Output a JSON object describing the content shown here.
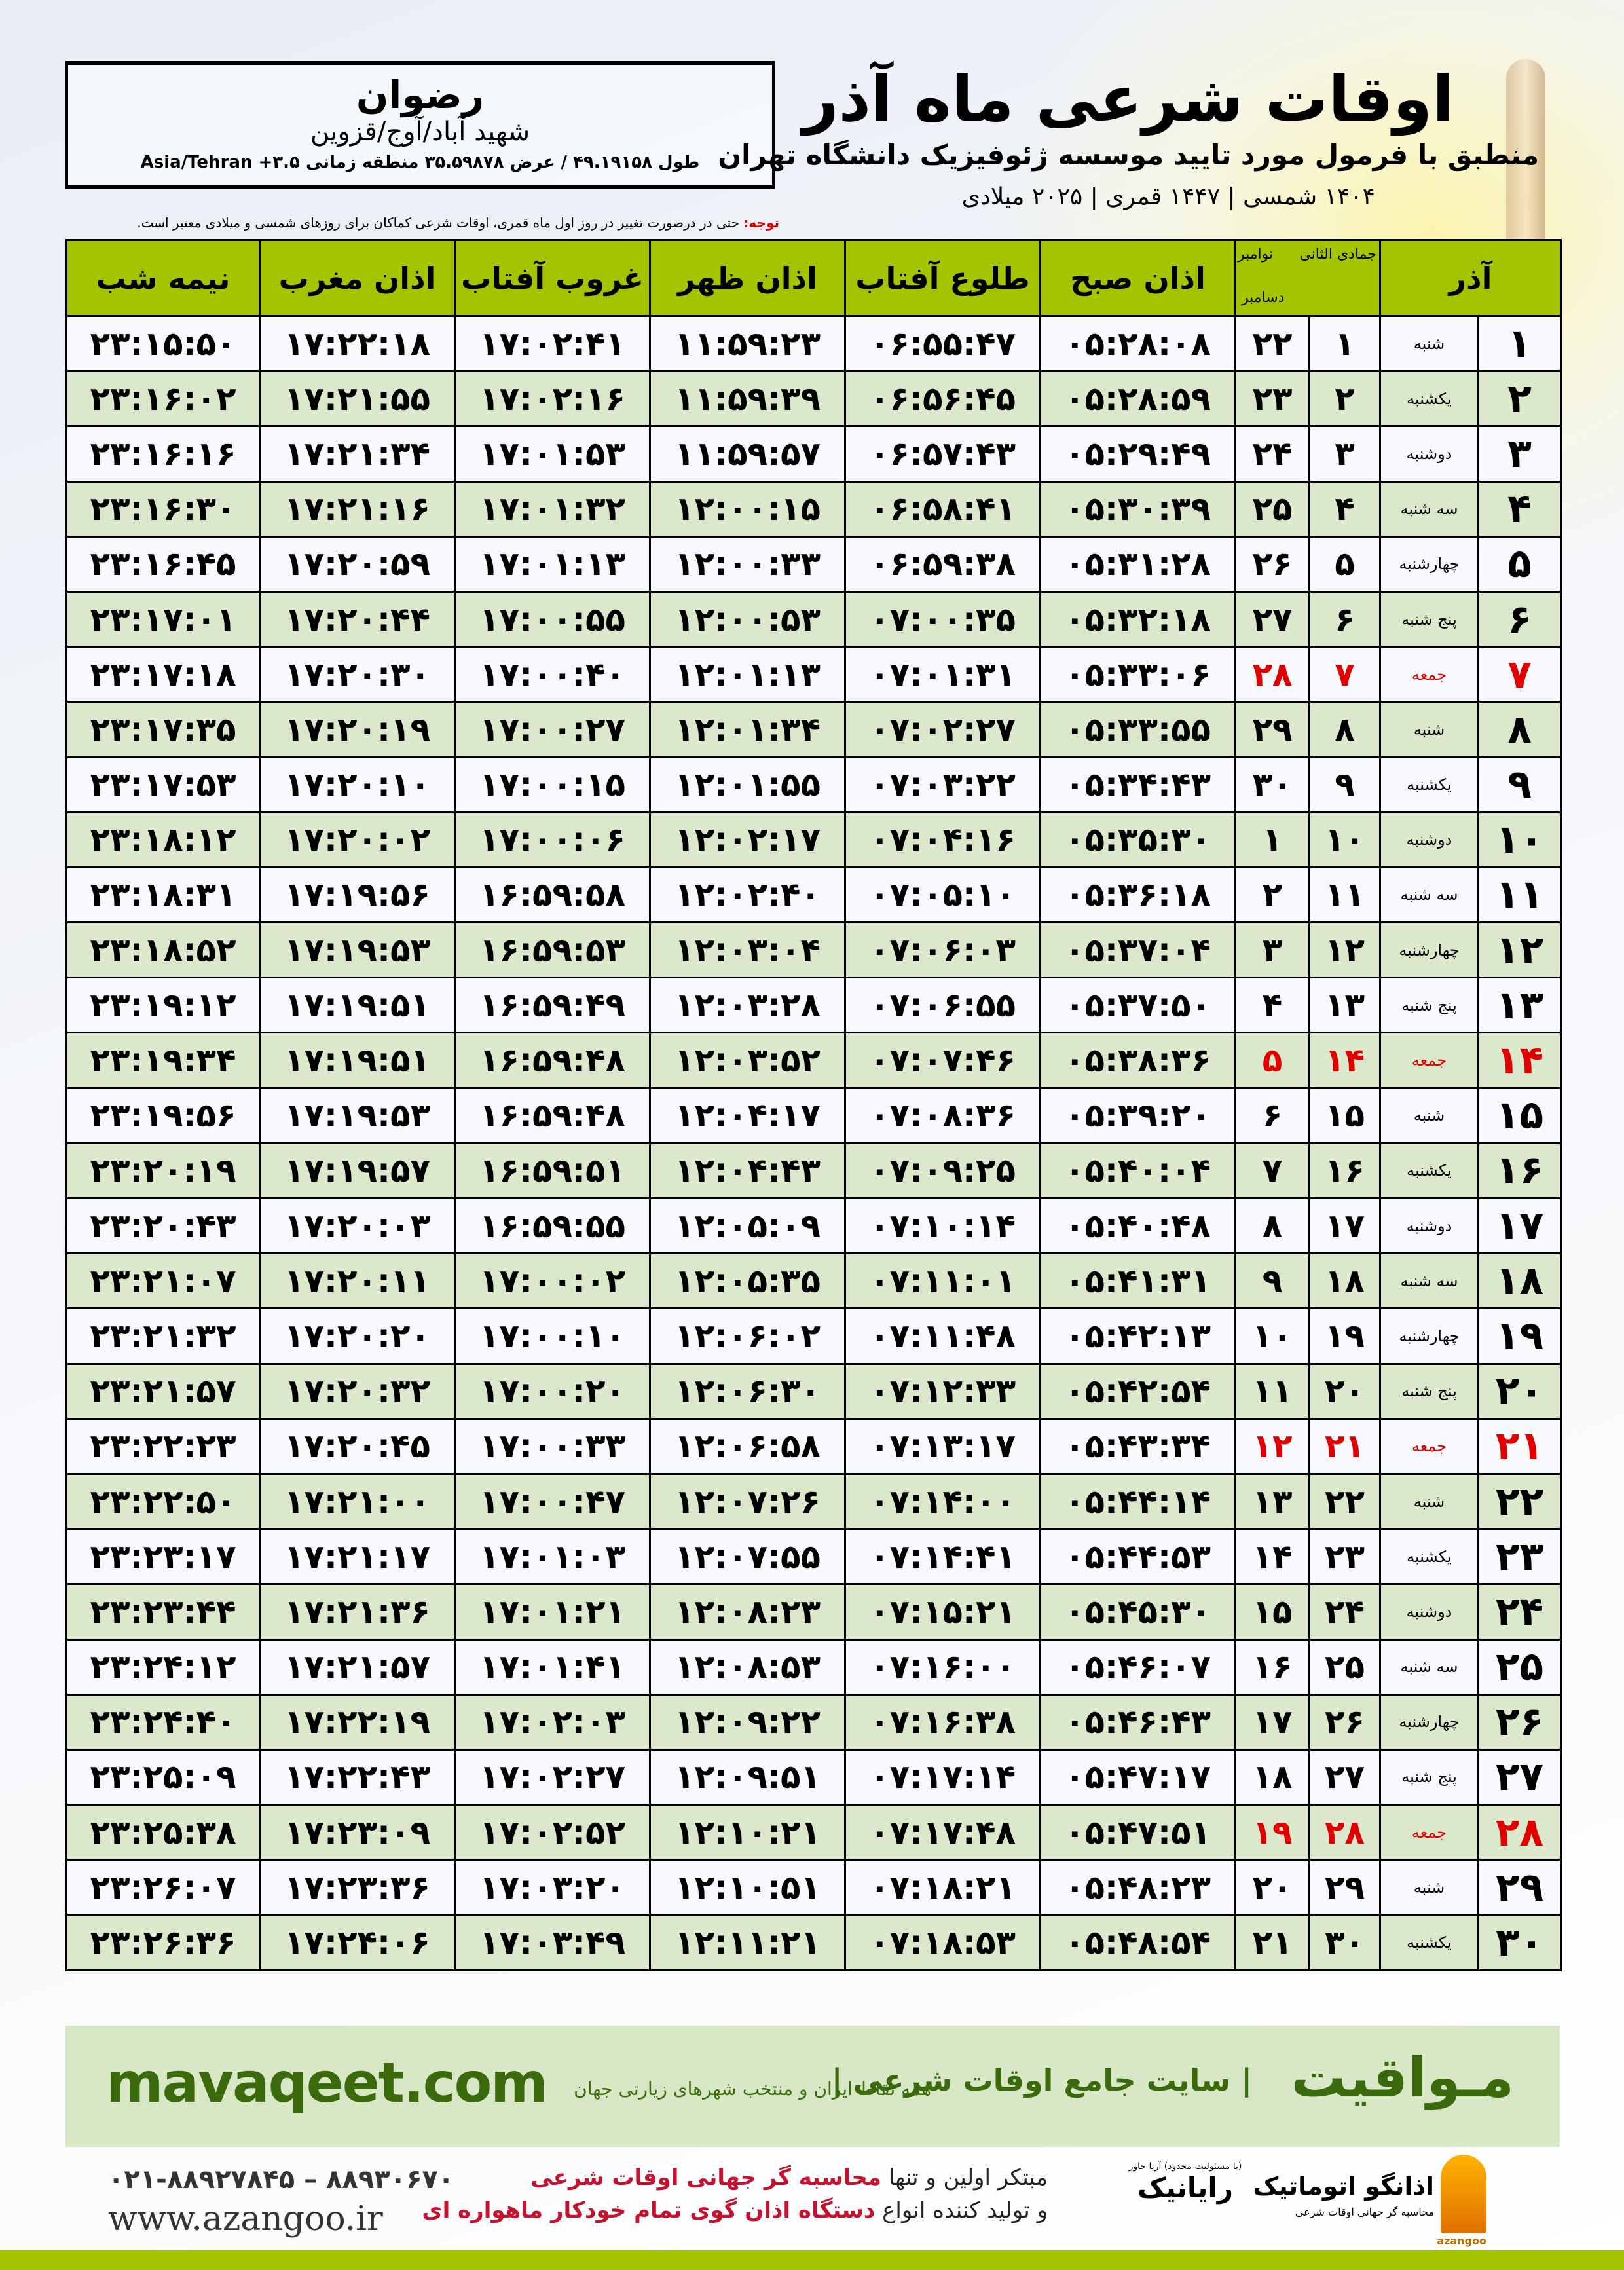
{
  "header": {
    "title": "اوقات شرعی ماه آذر",
    "subtitle": "منطبق با فرمول مورد تایید موسسه ژئوفیزیک دانشگاه تهران",
    "years": "۱۴۰۴ شمسی | ۱۴۴۷ قمری | ۲۰۲۵ میلادی"
  },
  "location": {
    "city": "رضوان",
    "region": "شهید آباد/آوج/قزوین",
    "coords": "طول ۴۹.۱۹۱۵۸ / عرض ۳۵.۵۹۸۷۸ منطقه زمانی Asia/Tehran +۳.۵"
  },
  "note": {
    "label": "توجه:",
    "text": " حتی در درصورت تغییر در روز اول ماه قمری، اوقات شرعی کماکان برای روزهای شمسی و میلادی معتبر است."
  },
  "table": {
    "headers": {
      "azar": "آذر",
      "hijri": "جمادی الثانی",
      "greg_top": "نوامبر",
      "greg_bottom": "دسامبر",
      "fajr": "اذان صبح",
      "sunrise": "طلوع آفتاب",
      "dhuhr": "اذان ظهر",
      "sunset": "غروب آفتاب",
      "maghrib": "اذان مغرب",
      "midnight": "نیمه شب"
    },
    "friday_color": "#e00000",
    "header_color": "#a5c400",
    "rows": [
      [
        "۱",
        "شنبه",
        "۱",
        "۲۲",
        "۰۵:۲۸:۰۸",
        "۰۶:۵۵:۴۷",
        "۱۱:۵۹:۲۳",
        "۱۷:۰۲:۴۱",
        "۱۷:۲۲:۱۸",
        "۲۳:۱۵:۵۰"
      ],
      [
        "۲",
        "یکشنبه",
        "۲",
        "۲۳",
        "۰۵:۲۸:۵۹",
        "۰۶:۵۶:۴۵",
        "۱۱:۵۹:۳۹",
        "۱۷:۰۲:۱۶",
        "۱۷:۲۱:۵۵",
        "۲۳:۱۶:۰۲"
      ],
      [
        "۳",
        "دوشنبه",
        "۳",
        "۲۴",
        "۰۵:۲۹:۴۹",
        "۰۶:۵۷:۴۳",
        "۱۱:۵۹:۵۷",
        "۱۷:۰۱:۵۳",
        "۱۷:۲۱:۳۴",
        "۲۳:۱۶:۱۶"
      ],
      [
        "۴",
        "سه شنبه",
        "۴",
        "۲۵",
        "۰۵:۳۰:۳۹",
        "۰۶:۵۸:۴۱",
        "۱۲:۰۰:۱۵",
        "۱۷:۰۱:۳۲",
        "۱۷:۲۱:۱۶",
        "۲۳:۱۶:۳۰"
      ],
      [
        "۵",
        "چهارشنبه",
        "۵",
        "۲۶",
        "۰۵:۳۱:۲۸",
        "۰۶:۵۹:۳۸",
        "۱۲:۰۰:۳۳",
        "۱۷:۰۱:۱۳",
        "۱۷:۲۰:۵۹",
        "۲۳:۱۶:۴۵"
      ],
      [
        "۶",
        "پنج شنبه",
        "۶",
        "۲۷",
        "۰۵:۳۲:۱۸",
        "۰۷:۰۰:۳۵",
        "۱۲:۰۰:۵۳",
        "۱۷:۰۰:۵۵",
        "۱۷:۲۰:۴۴",
        "۲۳:۱۷:۰۱"
      ],
      [
        "۷",
        "جمعه",
        "۷",
        "۲۸",
        "۰۵:۳۳:۰۶",
        "۰۷:۰۱:۳۱",
        "۱۲:۰۱:۱۳",
        "۱۷:۰۰:۴۰",
        "۱۷:۲۰:۳۰",
        "۲۳:۱۷:۱۸"
      ],
      [
        "۸",
        "شنبه",
        "۸",
        "۲۹",
        "۰۵:۳۳:۵۵",
        "۰۷:۰۲:۲۷",
        "۱۲:۰۱:۳۴",
        "۱۷:۰۰:۲۷",
        "۱۷:۲۰:۱۹",
        "۲۳:۱۷:۳۵"
      ],
      [
        "۹",
        "یکشنبه",
        "۹",
        "۳۰",
        "۰۵:۳۴:۴۳",
        "۰۷:۰۳:۲۲",
        "۱۲:۰۱:۵۵",
        "۱۷:۰۰:۱۵",
        "۱۷:۲۰:۱۰",
        "۲۳:۱۷:۵۳"
      ],
      [
        "۱۰",
        "دوشنبه",
        "۱۰",
        "۱",
        "۰۵:۳۵:۳۰",
        "۰۷:۰۴:۱۶",
        "۱۲:۰۲:۱۷",
        "۱۷:۰۰:۰۶",
        "۱۷:۲۰:۰۲",
        "۲۳:۱۸:۱۲"
      ],
      [
        "۱۱",
        "سه شنبه",
        "۱۱",
        "۲",
        "۰۵:۳۶:۱۸",
        "۰۷:۰۵:۱۰",
        "۱۲:۰۲:۴۰",
        "۱۶:۵۹:۵۸",
        "۱۷:۱۹:۵۶",
        "۲۳:۱۸:۳۱"
      ],
      [
        "۱۲",
        "چهارشنبه",
        "۱۲",
        "۳",
        "۰۵:۳۷:۰۴",
        "۰۷:۰۶:۰۳",
        "۱۲:۰۳:۰۴",
        "۱۶:۵۹:۵۳",
        "۱۷:۱۹:۵۳",
        "۲۳:۱۸:۵۲"
      ],
      [
        "۱۳",
        "پنج شنبه",
        "۱۳",
        "۴",
        "۰۵:۳۷:۵۰",
        "۰۷:۰۶:۵۵",
        "۱۲:۰۳:۲۸",
        "۱۶:۵۹:۴۹",
        "۱۷:۱۹:۵۱",
        "۲۳:۱۹:۱۲"
      ],
      [
        "۱۴",
        "جمعه",
        "۱۴",
        "۵",
        "۰۵:۳۸:۳۶",
        "۰۷:۰۷:۴۶",
        "۱۲:۰۳:۵۲",
        "۱۶:۵۹:۴۸",
        "۱۷:۱۹:۵۱",
        "۲۳:۱۹:۳۴"
      ],
      [
        "۱۵",
        "شنبه",
        "۱۵",
        "۶",
        "۰۵:۳۹:۲۰",
        "۰۷:۰۸:۳۶",
        "۱۲:۰۴:۱۷",
        "۱۶:۵۹:۴۸",
        "۱۷:۱۹:۵۳",
        "۲۳:۱۹:۵۶"
      ],
      [
        "۱۶",
        "یکشنبه",
        "۱۶",
        "۷",
        "۰۵:۴۰:۰۴",
        "۰۷:۰۹:۲۵",
        "۱۲:۰۴:۴۳",
        "۱۶:۵۹:۵۱",
        "۱۷:۱۹:۵۷",
        "۲۳:۲۰:۱۹"
      ],
      [
        "۱۷",
        "دوشنبه",
        "۱۷",
        "۸",
        "۰۵:۴۰:۴۸",
        "۰۷:۱۰:۱۴",
        "۱۲:۰۵:۰۹",
        "۱۶:۵۹:۵۵",
        "۱۷:۲۰:۰۳",
        "۲۳:۲۰:۴۳"
      ],
      [
        "۱۸",
        "سه شنبه",
        "۱۸",
        "۹",
        "۰۵:۴۱:۳۱",
        "۰۷:۱۱:۰۱",
        "۱۲:۰۵:۳۵",
        "۱۷:۰۰:۰۲",
        "۱۷:۲۰:۱۱",
        "۲۳:۲۱:۰۷"
      ],
      [
        "۱۹",
        "چهارشنبه",
        "۱۹",
        "۱۰",
        "۰۵:۴۲:۱۳",
        "۰۷:۱۱:۴۸",
        "۱۲:۰۶:۰۲",
        "۱۷:۰۰:۱۰",
        "۱۷:۲۰:۲۰",
        "۲۳:۲۱:۳۲"
      ],
      [
        "۲۰",
        "پنج شنبه",
        "۲۰",
        "۱۱",
        "۰۵:۴۲:۵۴",
        "۰۷:۱۲:۳۳",
        "۱۲:۰۶:۳۰",
        "۱۷:۰۰:۲۰",
        "۱۷:۲۰:۳۲",
        "۲۳:۲۱:۵۷"
      ],
      [
        "۲۱",
        "جمعه",
        "۲۱",
        "۱۲",
        "۰۵:۴۳:۳۴",
        "۰۷:۱۳:۱۷",
        "۱۲:۰۶:۵۸",
        "۱۷:۰۰:۳۳",
        "۱۷:۲۰:۴۵",
        "۲۳:۲۲:۲۳"
      ],
      [
        "۲۲",
        "شنبه",
        "۲۲",
        "۱۳",
        "۰۵:۴۴:۱۴",
        "۰۷:۱۴:۰۰",
        "۱۲:۰۷:۲۶",
        "۱۷:۰۰:۴۷",
        "۱۷:۲۱:۰۰",
        "۲۳:۲۲:۵۰"
      ],
      [
        "۲۳",
        "یکشنبه",
        "۲۳",
        "۱۴",
        "۰۵:۴۴:۵۳",
        "۰۷:۱۴:۴۱",
        "۱۲:۰۷:۵۵",
        "۱۷:۰۱:۰۳",
        "۱۷:۲۱:۱۷",
        "۲۳:۲۳:۱۷"
      ],
      [
        "۲۴",
        "دوشنبه",
        "۲۴",
        "۱۵",
        "۰۵:۴۵:۳۰",
        "۰۷:۱۵:۲۱",
        "۱۲:۰۸:۲۳",
        "۱۷:۰۱:۲۱",
        "۱۷:۲۱:۳۶",
        "۲۳:۲۳:۴۴"
      ],
      [
        "۲۵",
        "سه شنبه",
        "۲۵",
        "۱۶",
        "۰۵:۴۶:۰۷",
        "۰۷:۱۶:۰۰",
        "۱۲:۰۸:۵۳",
        "۱۷:۰۱:۴۱",
        "۱۷:۲۱:۵۷",
        "۲۳:۲۴:۱۲"
      ],
      [
        "۲۶",
        "چهارشنبه",
        "۲۶",
        "۱۷",
        "۰۵:۴۶:۴۳",
        "۰۷:۱۶:۳۸",
        "۱۲:۰۹:۲۲",
        "۱۷:۰۲:۰۳",
        "۱۷:۲۲:۱۹",
        "۲۳:۲۴:۴۰"
      ],
      [
        "۲۷",
        "پنج شنبه",
        "۲۷",
        "۱۸",
        "۰۵:۴۷:۱۷",
        "۰۷:۱۷:۱۴",
        "۱۲:۰۹:۵۱",
        "۱۷:۰۲:۲۷",
        "۱۷:۲۲:۴۳",
        "۲۳:۲۵:۰۹"
      ],
      [
        "۲۸",
        "جمعه",
        "۲۸",
        "۱۹",
        "۰۵:۴۷:۵۱",
        "۰۷:۱۷:۴۸",
        "۱۲:۱۰:۲۱",
        "۱۷:۰۲:۵۲",
        "۱۷:۲۳:۰۹",
        "۲۳:۲۵:۳۸"
      ],
      [
        "۲۹",
        "شنبه",
        "۲۹",
        "۲۰",
        "۰۵:۴۸:۲۳",
        "۰۷:۱۸:۲۱",
        "۱۲:۱۰:۵۱",
        "۱۷:۰۳:۲۰",
        "۱۷:۲۳:۳۶",
        "۲۳:۲۶:۰۷"
      ],
      [
        "۳۰",
        "یکشنبه",
        "۳۰",
        "۲۱",
        "۰۵:۴۸:۵۴",
        "۰۷:۱۸:۵۳",
        "۱۲:۱۱:۲۱",
        "۱۷:۰۳:۴۹",
        "۱۷:۲۴:۰۶",
        "۲۳:۲۶:۳۶"
      ]
    ]
  },
  "banner": {
    "brand": "مـواقیت",
    "tagline": "| سایت جامع اوقات شرعی |",
    "sub": "همه نقاط ایران و منتخب شهرهای زیارتی جهان",
    "site": "mavaqeet.com"
  },
  "footer": {
    "phone": "۰۲۱-۸۸۹۲۷۸۴۵ – ۸۸۹۳۰۶۷۰",
    "web": "www.azangoo.ir",
    "promo_line1_a": "مبتکر اولین و تنها ",
    "promo_line1_b": "محاسبه گر جهانی اوقات شرعی",
    "promo_line2_a": "و تولید کننده انواع ",
    "promo_line2_b": "دستگاه اذان گوی تمام خودکار ماهواره ای",
    "logo_rayanik": "رایانیک",
    "logo_rayanik_small": "(با مسئولیت محدود) آریا خاور",
    "logo_azangoo": "اذانگو اتوماتیک",
    "logo_azangoo_sub": "محاسبه گر جهانی اوقات شرعی",
    "logo_azangoo_en": "azangoo"
  }
}
